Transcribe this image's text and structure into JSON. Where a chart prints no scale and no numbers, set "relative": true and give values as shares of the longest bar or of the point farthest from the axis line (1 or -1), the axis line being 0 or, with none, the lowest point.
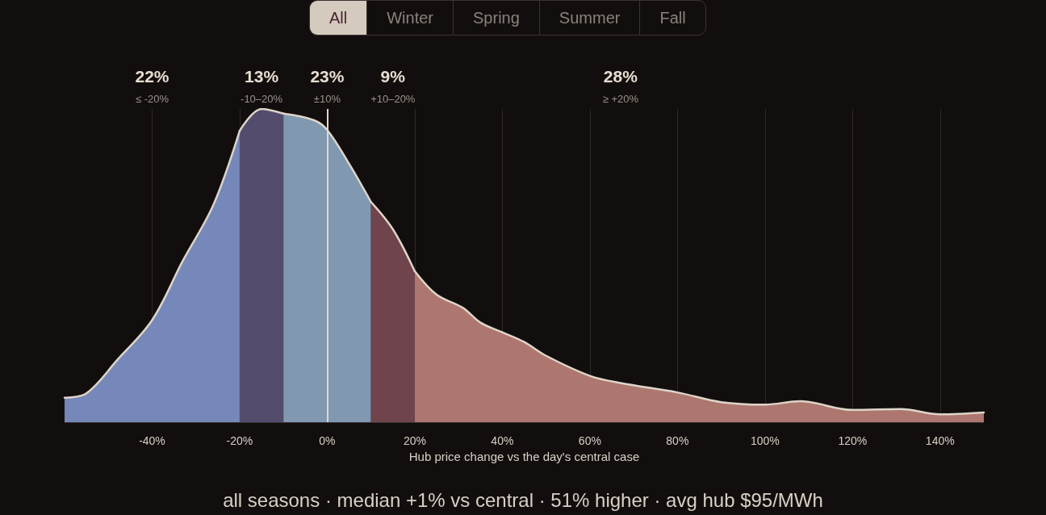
{
  "chart_data": {
    "type": "area",
    "relative": true,
    "xlabel": "Hub price change vs the day's central case",
    "xlim": [
      -60,
      150
    ],
    "xticks": [
      {
        "value": -40,
        "label": "-40%"
      },
      {
        "value": -20,
        "label": "-20%"
      },
      {
        "value": 0,
        "label": "0%"
      },
      {
        "value": 20,
        "label": "20%"
      },
      {
        "value": 40,
        "label": "40%"
      },
      {
        "value": 60,
        "label": "60%"
      },
      {
        "value": 80,
        "label": "80%"
      },
      {
        "value": 100,
        "label": "100%"
      },
      {
        "value": 120,
        "label": "120%"
      },
      {
        "value": 140,
        "label": "140%"
      }
    ],
    "grid": "x",
    "series": [
      {
        "color": "#7688b9",
        "x": [
          -60,
          -55,
          -48,
          -40,
          -33,
          -26,
          -20
        ],
        "values": [
          0.078,
          0.092,
          0.198,
          0.326,
          0.515,
          0.694,
          0.93
        ]
      },
      {
        "color": "#544c6c",
        "x": [
          -20,
          -15,
          -10
        ],
        "values": [
          0.93,
          1,
          0.985
        ]
      },
      {
        "color": "#8099b1",
        "x": [
          -10,
          -3,
          0,
          5,
          10
        ],
        "values": [
          0.985,
          0.964,
          0.933,
          0.825,
          0.703
        ]
      },
      {
        "color": "#70444c",
        "x": [
          10,
          15,
          20
        ],
        "values": [
          0.703,
          0.616,
          0.482
        ]
      },
      {
        "color": "#ad7770",
        "x": [
          20,
          25,
          31,
          35,
          40,
          45,
          50,
          60,
          67,
          80,
          90,
          100,
          108,
          120,
          131,
          140,
          150
        ],
        "values": [
          0.482,
          0.407,
          0.365,
          0.318,
          0.287,
          0.256,
          0.212,
          0.148,
          0.125,
          0.095,
          0.064,
          0.056,
          0.067,
          0.039,
          0.042,
          0.025,
          0.031
        ]
      }
    ],
    "ref_lines": [
      {
        "axis": "x",
        "value": 0,
        "color": "#e0d8cc"
      }
    ],
    "annotations": [
      "22%",
      "≤ -20%",
      "13%",
      "-10–20%",
      "23%",
      "±10%",
      "9%",
      "+10–20%",
      "28%",
      "≥ +20%",
      "All",
      "Winter",
      "Spring",
      "Summer",
      "Fall",
      "all seasons · median +1% vs central · 51% higher · avg hub $95/MWh"
    ]
  }
}
